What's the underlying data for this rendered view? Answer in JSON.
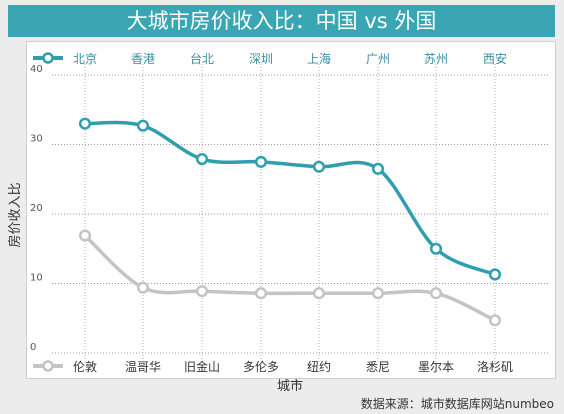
{
  "title": "大城市房价收入比：中国 vs 外国",
  "source": "数据来源：城市数据库网站numbeo",
  "colors": {
    "title_bg": "#3aa6b3",
    "china_series": "#2f9faf",
    "foreign_series": "#c4c4c4",
    "text_teal": "#3a8ea0",
    "text_dark": "#333333"
  },
  "chart_data": {
    "type": "line",
    "ylabel": "房价收入比",
    "xlabel": "城市",
    "ylim": [
      0,
      40
    ],
    "yticks": [
      "0",
      "10",
      "20",
      "30",
      "40"
    ],
    "grid": "dotted",
    "legend_position": "top",
    "series": [
      {
        "name": "china",
        "categories": [
          "北京",
          "香港",
          "台北",
          "深圳",
          "上海",
          "广州",
          "苏州",
          "西安"
        ],
        "values": [
          33,
          32.7,
          27.9,
          27.5,
          26.8,
          26.5,
          15,
          11.3
        ],
        "labels_position": "top"
      },
      {
        "name": "foreign",
        "categories": [
          "伦敦",
          "温哥华",
          "旧金山",
          "多伦多",
          "纽约",
          "悉尼",
          "墨尔本",
          "洛杉矶"
        ],
        "values": [
          16.9,
          9.4,
          8.9,
          8.6,
          8.6,
          8.6,
          8.6,
          4.7
        ],
        "labels_position": "bottom"
      }
    ]
  }
}
